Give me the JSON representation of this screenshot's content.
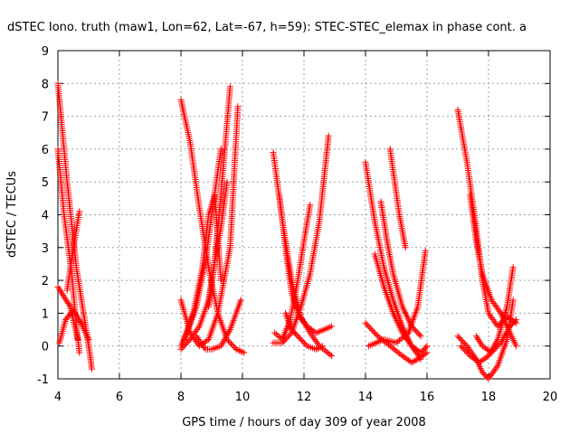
{
  "chart_data": {
    "type": "scatter",
    "title": "dSTEC Iono. truth (maw1, Lon=62, Lat=-67, h=59): STEC-STEC_elemax in phase cont. a",
    "xlabel": "GPS time / hours of day 309 of year 2008",
    "ylabel": "dSTEC  / TECUs",
    "xlim": [
      4,
      20
    ],
    "ylim": [
      -1,
      9
    ],
    "x_ticks": [
      "4",
      "6",
      "8",
      "10",
      "12",
      "14",
      "16",
      "18",
      "20"
    ],
    "y_ticks": [
      "-1",
      "0",
      "1",
      "2",
      "3",
      "4",
      "5",
      "6",
      "7",
      "8",
      "9"
    ],
    "grid": true,
    "marker": "plus",
    "color": "#ff0000",
    "series": [
      {
        "x": [
          4.0,
          4.3,
          4.6,
          4.9,
          5.05,
          5.1
        ],
        "y": [
          8.0,
          5.0,
          2.4,
          0.6,
          -0.3,
          -0.7
        ]
      },
      {
        "x": [
          4.0,
          4.2,
          4.45,
          4.6,
          4.7
        ],
        "y": [
          6.0,
          4.0,
          2.2,
          0.6,
          -0.2
        ]
      },
      {
        "x": [
          4.05,
          4.25,
          4.5,
          4.75,
          5.0
        ],
        "y": [
          0.1,
          0.8,
          1.1,
          0.7,
          0.2
        ]
      },
      {
        "x": [
          4.0,
          4.2,
          4.4,
          4.55,
          4.65
        ],
        "y": [
          1.8,
          1.5,
          1.2,
          0.6,
          0.2
        ]
      },
      {
        "x": [
          4.3,
          4.5,
          4.7
        ],
        "y": [
          1.7,
          3.0,
          4.1
        ]
      },
      {
        "x": [
          8.0,
          8.3,
          8.6,
          8.9,
          9.2,
          9.5,
          9.8,
          10.05
        ],
        "y": [
          7.5,
          6.2,
          4.2,
          2.4,
          1.0,
          0.2,
          -0.1,
          -0.2
        ]
      },
      {
        "x": [
          8.0,
          8.3,
          8.6,
          8.9,
          9.1,
          9.3,
          9.6
        ],
        "y": [
          -0.1,
          0.2,
          0.6,
          1.4,
          2.6,
          4.6,
          7.9
        ]
      },
      {
        "x": [
          8.0,
          8.3,
          8.6,
          8.9,
          9.2,
          9.6,
          9.85
        ],
        "y": [
          1.4,
          0.4,
          0.0,
          0.2,
          1.0,
          3.0,
          7.3
        ]
      },
      {
        "x": [
          8.0,
          8.2,
          8.5,
          8.8,
          9.0,
          9.3
        ],
        "y": [
          0.0,
          0.4,
          1.2,
          2.6,
          4.0,
          6.0
        ]
      },
      {
        "x": [
          8.1,
          8.4,
          8.7,
          8.9,
          9.1,
          9.3
        ],
        "y": [
          0.2,
          1.0,
          2.4,
          4.0,
          4.6,
          2.0
        ]
      },
      {
        "x": [
          8.5,
          8.8,
          9.0,
          9.3,
          9.6,
          9.95
        ],
        "y": [
          0.3,
          -0.1,
          -0.1,
          0.0,
          0.5,
          1.4
        ]
      },
      {
        "x": [
          8.9,
          9.1,
          9.3,
          9.5
        ],
        "y": [
          1.2,
          2.6,
          3.6,
          5.0
        ]
      },
      {
        "x": [
          11.0,
          11.3,
          11.6,
          11.9,
          12.2,
          12.5,
          12.9
        ],
        "y": [
          5.9,
          3.8,
          2.0,
          0.9,
          0.4,
          0.0,
          -0.3
        ]
      },
      {
        "x": [
          11.0,
          11.3,
          11.6,
          11.9,
          12.2,
          12.5,
          12.8
        ],
        "y": [
          0.1,
          0.1,
          0.4,
          1.2,
          2.2,
          3.8,
          6.4
        ]
      },
      {
        "x": [
          11.2,
          11.4,
          11.6,
          11.85,
          12.1,
          12.4,
          12.9
        ],
        "y": [
          4.6,
          3.0,
          1.6,
          0.9,
          0.6,
          0.4,
          0.6
        ]
      },
      {
        "x": [
          11.05,
          11.3,
          11.55,
          11.8,
          12.0,
          12.2
        ],
        "y": [
          0.4,
          0.2,
          0.8,
          2.0,
          3.2,
          4.3
        ]
      },
      {
        "x": [
          11.4,
          11.6,
          11.8,
          12.1,
          12.4,
          12.6
        ],
        "y": [
          1.0,
          0.5,
          0.3,
          0.0,
          -0.1,
          0.0
        ]
      },
      {
        "x": [
          14.0,
          14.3,
          14.6,
          14.9,
          15.2,
          15.5,
          15.8
        ],
        "y": [
          5.6,
          3.8,
          2.4,
          1.4,
          0.6,
          0.0,
          -0.4
        ]
      },
      {
        "x": [
          14.0,
          14.4,
          14.8,
          15.2,
          15.5,
          15.7,
          16.0
        ],
        "y": [
          0.7,
          0.3,
          0.0,
          -0.3,
          -0.5,
          -0.4,
          -0.2
        ]
      },
      {
        "x": [
          14.3,
          14.6,
          14.9,
          15.2,
          15.5,
          15.8,
          16.0
        ],
        "y": [
          2.8,
          1.8,
          1.0,
          0.4,
          0.0,
          -0.2,
          0.0
        ]
      },
      {
        "x": [
          14.5,
          14.7,
          14.9,
          15.2,
          15.5,
          15.8
        ],
        "y": [
          4.4,
          3.2,
          2.2,
          1.2,
          0.6,
          0.3
        ]
      },
      {
        "x": [
          14.8,
          14.95,
          15.1,
          15.3
        ],
        "y": [
          6.0,
          5.0,
          4.0,
          3.0
        ]
      },
      {
        "x": [
          14.1,
          14.6,
          15.0,
          15.4,
          15.7,
          15.95
        ],
        "y": [
          0.0,
          0.2,
          0.1,
          0.4,
          1.2,
          2.9
        ]
      },
      {
        "x": [
          17.0,
          17.3,
          17.6,
          17.8,
          18.0,
          18.3,
          18.6,
          18.9
        ],
        "y": [
          7.2,
          5.6,
          3.6,
          2.0,
          1.0,
          0.6,
          0.9,
          0.7
        ]
      },
      {
        "x": [
          17.0,
          17.3,
          17.6,
          17.8,
          18.0,
          18.3,
          18.6,
          18.8
        ],
        "y": [
          0.3,
          0.0,
          -0.4,
          -0.8,
          -1.0,
          -0.6,
          0.2,
          1.4
        ]
      },
      {
        "x": [
          17.1,
          17.4,
          17.7,
          18.0,
          18.3,
          18.6,
          18.8
        ],
        "y": [
          0.0,
          -0.3,
          -0.5,
          -0.3,
          0.2,
          1.2,
          2.4
        ]
      },
      {
        "x": [
          17.4,
          17.6,
          17.8,
          18.1,
          18.4,
          18.7,
          18.9
        ],
        "y": [
          4.6,
          3.2,
          2.2,
          1.4,
          1.0,
          0.4,
          0.0
        ]
      },
      {
        "x": [
          17.6,
          17.8,
          18.1,
          18.4,
          18.7,
          18.9
        ],
        "y": [
          0.3,
          0.0,
          -0.2,
          0.1,
          0.6,
          0.8
        ]
      }
    ]
  }
}
